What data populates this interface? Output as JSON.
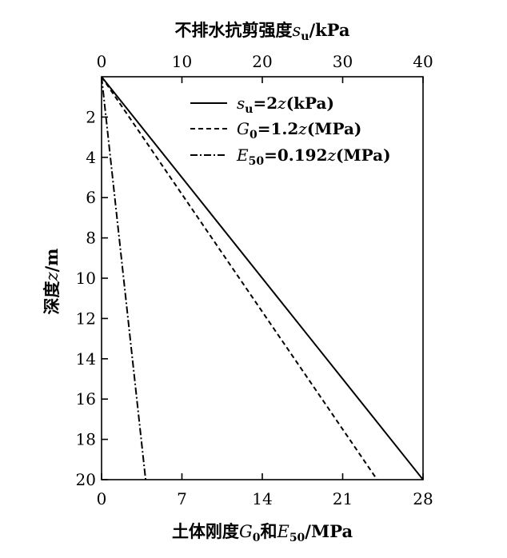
{
  "chart_data": {
    "type": "line",
    "top_axis": {
      "label": "不排水抗剪强度s_u/kPa",
      "label_main": "不排水抗剪强度",
      "label_var": "s",
      "label_sub": "u",
      "label_unit": "/kPa",
      "range": [
        0,
        40
      ],
      "ticks": [
        "0",
        "10",
        "20",
        "30",
        "40"
      ]
    },
    "bottom_axis": {
      "label": "土体刚度G0和E50/MPa",
      "label_a": "土体刚度",
      "label_g": "G",
      "label_g_sub": "0",
      "label_and": "和",
      "label_e": "E",
      "label_e_sub": "50",
      "label_unit": "/MPa",
      "range": [
        0,
        28
      ],
      "ticks": [
        "0",
        "7",
        "14",
        "21",
        "28"
      ]
    },
    "y_axis": {
      "label": "深度z/m",
      "label_main": "深度",
      "label_var": "z",
      "label_unit": "/m",
      "range": [
        0,
        20
      ],
      "inverted": true,
      "ticks": [
        "2",
        "4",
        "6",
        "8",
        "10",
        "12",
        "14",
        "16",
        "18",
        "20"
      ]
    },
    "series": [
      {
        "name": "s_u=2z(kPa)",
        "legend_var": "s",
        "legend_sub": "u",
        "legend_eq": "=2",
        "legend_z": "z",
        "legend_unit": "(kPa)",
        "axis": "top",
        "style": "solid",
        "points": [
          [
            0,
            0
          ],
          [
            40,
            20
          ]
        ]
      },
      {
        "name": "G0=1.2z(MPa)",
        "legend_var": "G",
        "legend_sub": "0",
        "legend_eq": "=1.2",
        "legend_z": "z",
        "legend_unit": "(MPa)",
        "axis": "bottom",
        "style": "dashed",
        "points": [
          [
            0,
            0
          ],
          [
            24,
            20
          ]
        ]
      },
      {
        "name": "E50=0.192z(MPa)",
        "legend_var": "E",
        "legend_sub": "50",
        "legend_eq": "=0.192",
        "legend_z": "z",
        "legend_unit": "(MPa)",
        "axis": "bottom",
        "style": "dashdot",
        "points": [
          [
            0,
            0
          ],
          [
            3.84,
            20
          ]
        ]
      }
    ],
    "legend_position": "top-right",
    "grid": false
  }
}
